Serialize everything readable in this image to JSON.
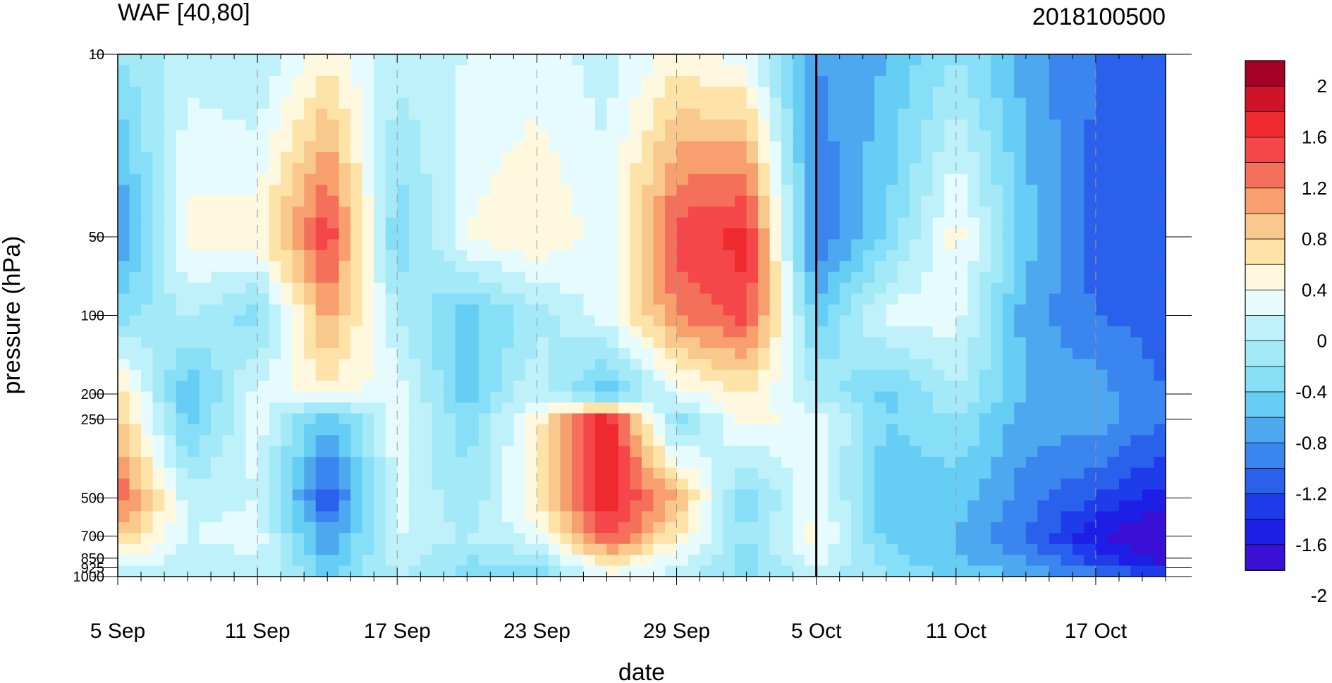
{
  "chart_data": {
    "type": "heatmap",
    "title": "WAF [40,80]",
    "subtitle": "2018100500",
    "xlabel": "date",
    "ylabel": "pressure (hPa)",
    "x_ticks": [
      "5 Sep",
      "11 Sep",
      "17 Sep",
      "23 Sep",
      "29 Sep",
      "5 Oct",
      "11 Oct",
      "17 Oct"
    ],
    "x_range": [
      "2018-09-05",
      "2018-10-20"
    ],
    "y_scale": "log",
    "y_reversed": true,
    "y_range": [
      1000,
      10
    ],
    "y_ticks": [
      10,
      50,
      100,
      200,
      250,
      500,
      700,
      850,
      925,
      1000
    ],
    "y_tick_labels": [
      "10",
      "50",
      "100",
      "200",
      "250",
      "500",
      "700",
      "850",
      "925",
      "1000"
    ],
    "analysis_time_marker": "2018-10-05",
    "colorbar": {
      "labels": [
        "2",
        "1.6",
        "1.2",
        "0.8",
        "0.4",
        "0",
        "-0.4",
        "-0.8",
        "-1.2",
        "-1.6",
        "-2"
      ],
      "colors": [
        "#a50026",
        "#d01427",
        "#ee2a2e",
        "#f5474a",
        "#f5705a",
        "#f7a06d",
        "#f9c88c",
        "#fde3a7",
        "#fef8de",
        "#e6fbfd",
        "#bff1fa",
        "#a3e9f8",
        "#86dff6",
        "#66cdf5",
        "#4ea8f0",
        "#3a85ee",
        "#2a61ec",
        "#1f3cea",
        "#1d1fe6",
        "#3a10d4"
      ]
    },
    "field": {
      "dates": [
        "2018-09-05",
        "2018-09-08",
        "2018-09-11",
        "2018-09-14",
        "2018-09-17",
        "2018-09-20",
        "2018-09-23",
        "2018-09-26",
        "2018-09-29",
        "2018-10-02",
        "2018-10-05",
        "2018-10-08",
        "2018-10-11",
        "2018-10-14",
        "2018-10-17",
        "2018-10-20"
      ],
      "pressure": [
        10,
        50,
        100,
        200,
        250,
        500,
        700,
        850,
        1000
      ],
      "values": [
        [
          -0.2,
          0.1,
          0.0,
          0.5,
          0.1,
          0.2,
          0.3,
          0.1,
          0.5,
          0.3,
          -0.8,
          -0.6,
          -0.2,
          -0.7,
          -1.0,
          -1.2
        ],
        [
          -0.9,
          0.5,
          0.5,
          1.6,
          -0.4,
          0.4,
          0.6,
          0.3,
          1.5,
          1.7,
          -1.0,
          -0.4,
          0.5,
          -0.5,
          -1.1,
          -1.2
        ],
        [
          -0.3,
          0.0,
          -0.3,
          1.1,
          0.0,
          -0.5,
          -0.1,
          0.3,
          1.2,
          1.5,
          -0.5,
          0.3,
          0.3,
          -0.7,
          -1.0,
          -1.1
        ],
        [
          0.8,
          -0.6,
          0.3,
          0.5,
          0.3,
          -0.5,
          0.2,
          -0.6,
          0.3,
          0.6,
          0.0,
          -0.5,
          0.0,
          -0.6,
          -0.7,
          -1.0
        ],
        [
          0.9,
          -0.5,
          0.3,
          -0.6,
          0.3,
          -0.3,
          0.5,
          1.8,
          -0.3,
          0.5,
          0.3,
          -0.4,
          -0.2,
          -0.7,
          -0.7,
          -1.0
        ],
        [
          1.4,
          0.1,
          0.2,
          -1.2,
          0.3,
          -0.2,
          0.6,
          1.8,
          1.0,
          -0.4,
          0.4,
          -0.6,
          -0.5,
          -0.9,
          -1.2,
          -1.5
        ],
        [
          0.9,
          0.2,
          0.3,
          -0.8,
          0.2,
          0.0,
          0.3,
          1.5,
          0.6,
          -0.2,
          0.5,
          -0.5,
          -0.6,
          -1.0,
          -1.6,
          -1.9
        ],
        [
          0.4,
          0.1,
          0.2,
          -0.6,
          0.1,
          -0.2,
          -0.1,
          0.8,
          0.3,
          -0.3,
          0.3,
          -0.3,
          -0.6,
          -0.8,
          -1.3,
          -1.7
        ],
        [
          0.1,
          0.0,
          0.2,
          -0.4,
          0.0,
          -0.3,
          -0.4,
          0.3,
          0.1,
          -0.3,
          0.1,
          -0.2,
          -0.4,
          -0.6,
          -0.9,
          -1.2
        ]
      ]
    }
  }
}
